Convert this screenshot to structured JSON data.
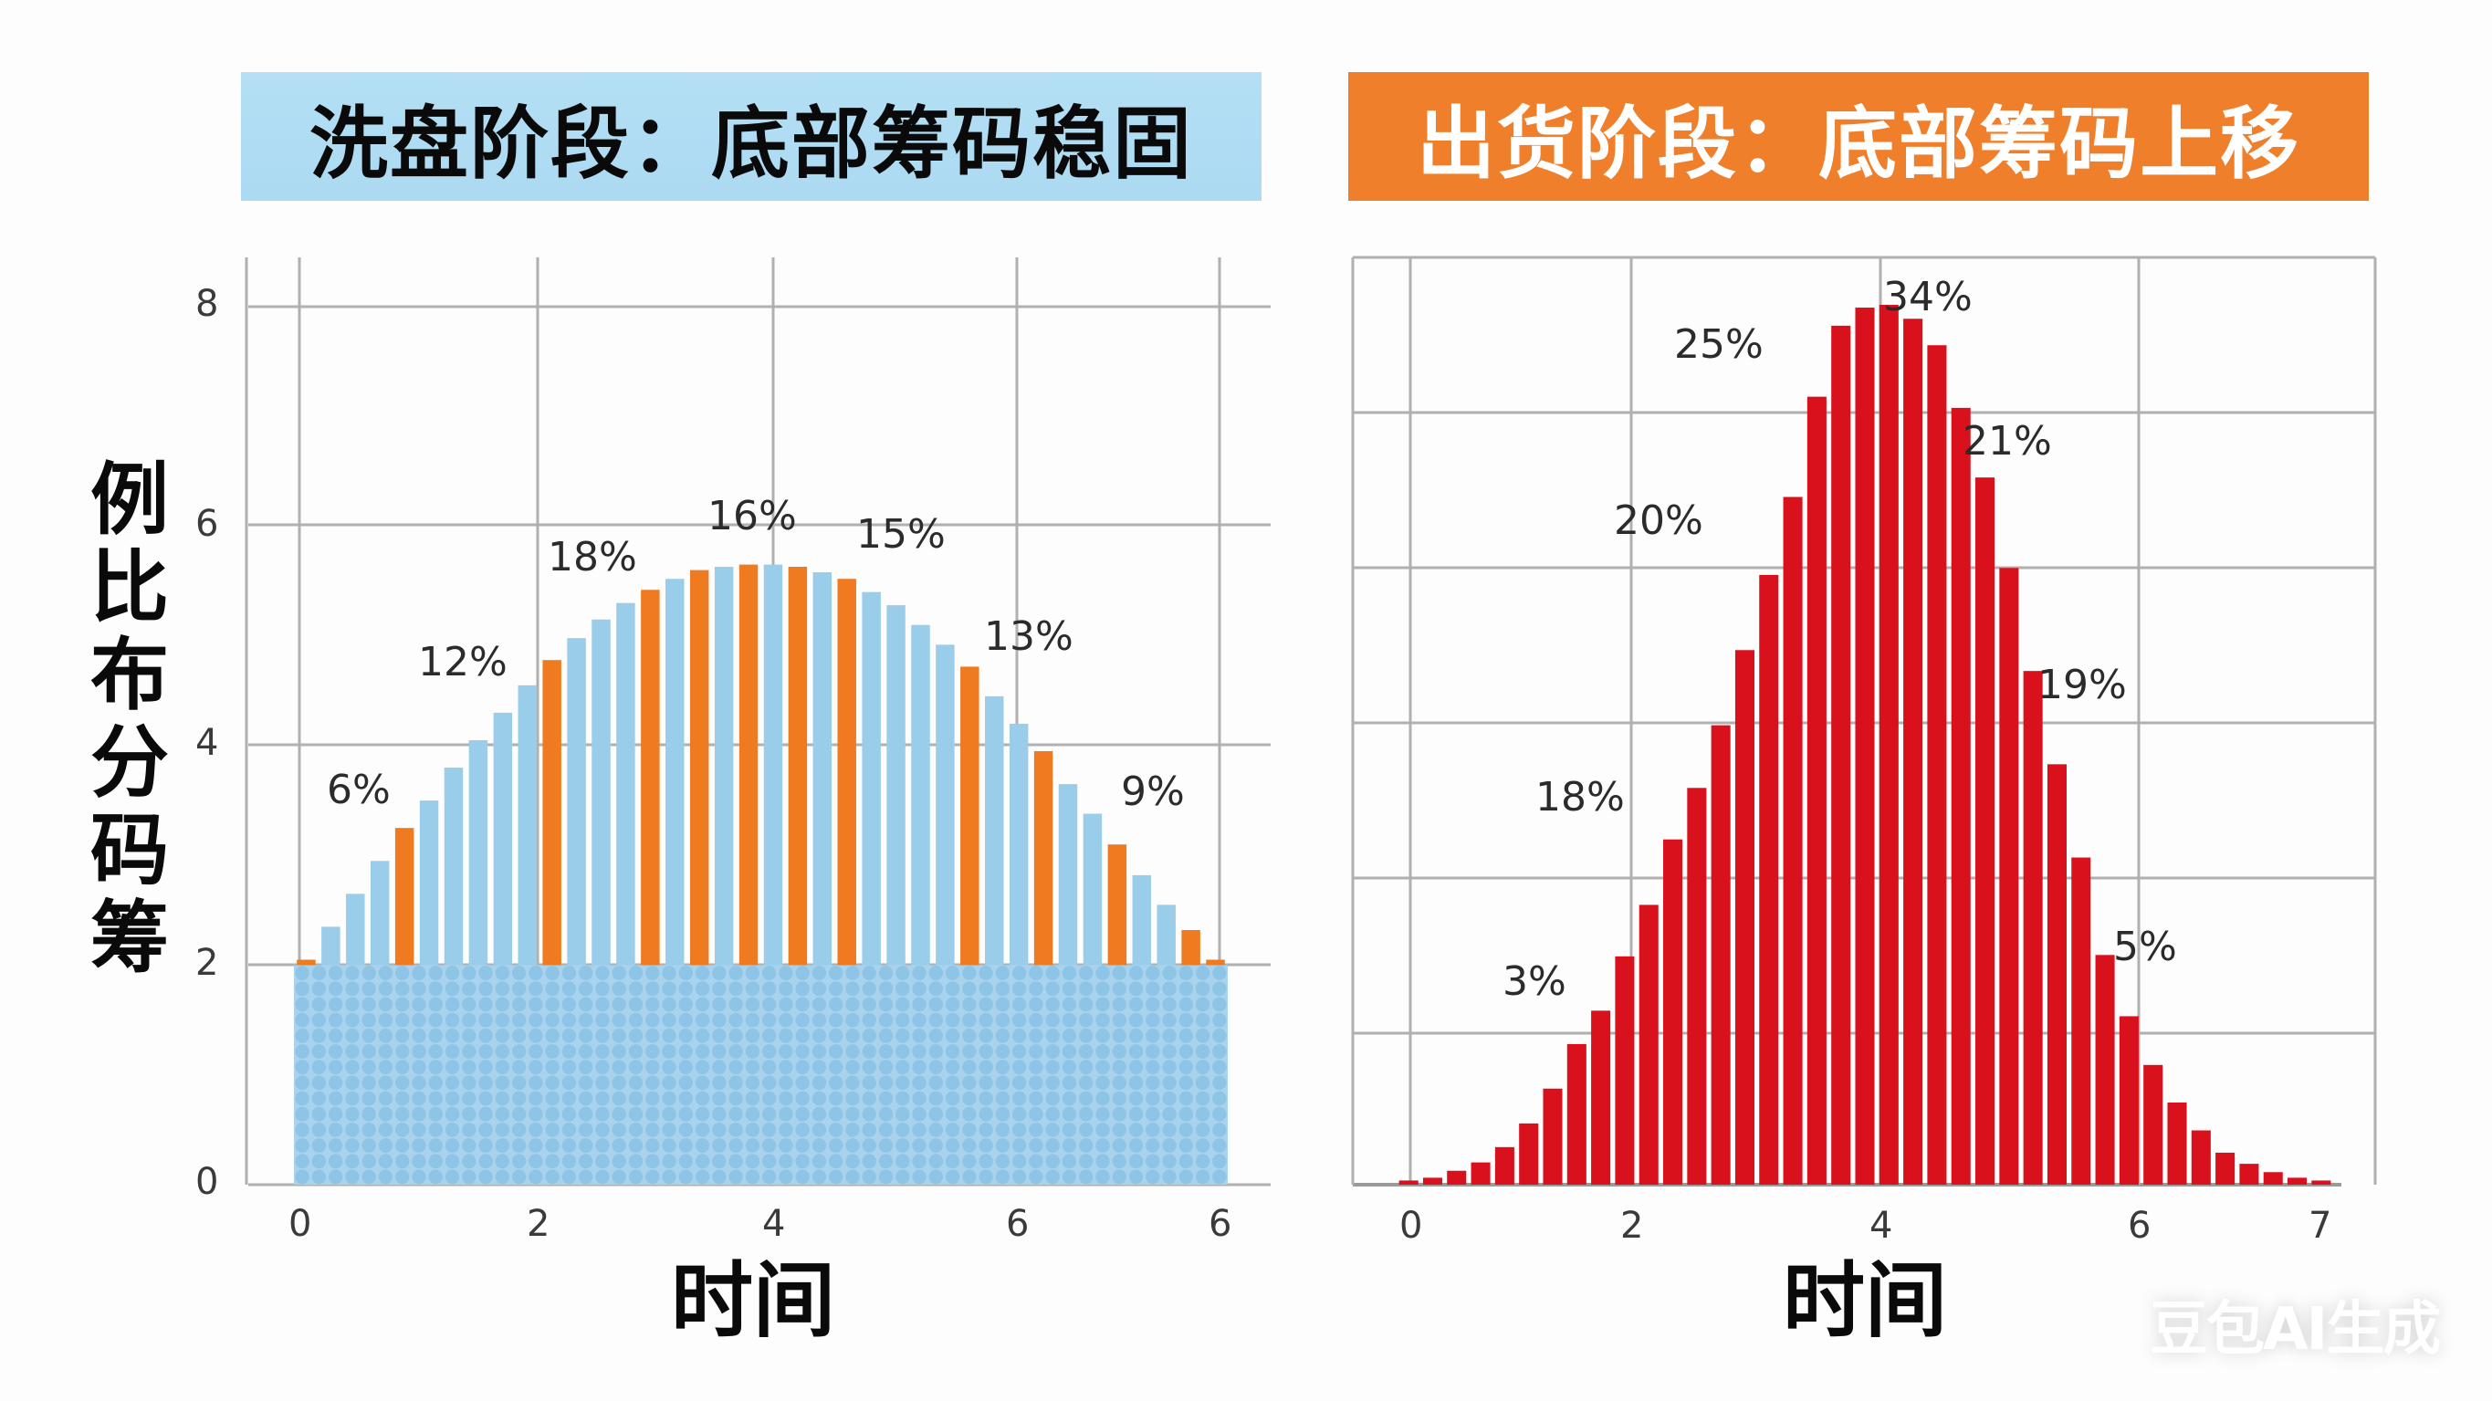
{
  "titles": {
    "left": "洗盘阶段：底部筹码稳固",
    "right": "出货阶段：底部筹码上移"
  },
  "colors": {
    "left_banner": "#b0dcf3",
    "right_banner": "#ef7f2b",
    "blue_bar": "#99cdea",
    "orange_bar": "#ef7a1f",
    "red_bar": "#d9111c",
    "dot_fill": "#8ec4e6",
    "grid": "#b0b0b0"
  },
  "ylabel_left": [
    "例",
    "比",
    "布",
    "分",
    "码",
    "筹"
  ],
  "xlabel_left": "时间",
  "xlabel_right": "时间",
  "watermark": "豆包AI生成",
  "chart_data": [
    {
      "type": "bar",
      "title": "洗盘阶段：底部筹码稳固",
      "xlabel": "时间",
      "ylabel": "筹码分布比例",
      "ylim": [
        0,
        8
      ],
      "yticks": [
        "0",
        "2",
        "4",
        "6",
        "8"
      ],
      "xticks": [
        "0",
        "2",
        "4",
        "6",
        "6"
      ],
      "grid": true,
      "base_block": {
        "from": 0,
        "to": 2,
        "style": "dotted blue fill"
      },
      "bars": {
        "values": [
          2.05,
          2.35,
          2.65,
          2.95,
          3.25,
          3.5,
          3.8,
          4.05,
          4.3,
          4.55,
          4.78,
          4.98,
          5.15,
          5.3,
          5.42,
          5.52,
          5.6,
          5.63,
          5.65,
          5.65,
          5.63,
          5.58,
          5.52,
          5.4,
          5.28,
          5.1,
          4.92,
          4.72,
          4.45,
          4.2,
          3.95,
          3.65,
          3.38,
          3.1,
          2.82,
          2.55,
          2.32,
          2.05
        ],
        "colors": [
          "orange",
          "blue",
          "blue",
          "blue",
          "orange",
          "blue",
          "blue",
          "blue",
          "blue",
          "blue",
          "orange",
          "blue",
          "blue",
          "blue",
          "orange",
          "blue",
          "orange",
          "blue",
          "orange",
          "blue",
          "orange",
          "blue",
          "orange",
          "blue",
          "blue",
          "blue",
          "blue",
          "orange",
          "blue",
          "blue",
          "orange",
          "blue",
          "blue",
          "orange",
          "blue",
          "blue",
          "orange",
          "orange"
        ]
      },
      "annotations": [
        {
          "text": "6%",
          "x": 0.6,
          "y": 3.5
        },
        {
          "text": "12%",
          "x": 1.5,
          "y": 4.6
        },
        {
          "text": "18%",
          "x": 2.5,
          "y": 5.7
        },
        {
          "text": "16%",
          "x": 3.85,
          "y": 6.0
        },
        {
          "text": "15%",
          "x": 5.1,
          "y": 5.8
        },
        {
          "text": "13%",
          "x": 6.05,
          "y": 4.9
        },
        {
          "text": "9%",
          "x": 7.1,
          "y": 3.5
        }
      ]
    },
    {
      "type": "bar",
      "title": "出货阶段：底部筹码上移",
      "xlabel": "时间",
      "xticks": [
        "0",
        "2",
        "4",
        "6",
        "7"
      ],
      "grid": true,
      "bars": {
        "values": [
          0.3,
          0.5,
          1.0,
          1.6,
          2.7,
          4.4,
          6.9,
          10.1,
          12.5,
          16.4,
          20.1,
          24.8,
          28.5,
          33.0,
          38.4,
          43.8,
          49.4,
          56.6,
          61.7,
          63.0,
          63.2,
          62.2,
          60.3,
          55.8,
          50.8,
          44.3,
          36.9,
          30.2,
          23.5,
          16.5,
          12.1,
          8.6,
          5.9,
          3.9,
          2.3,
          1.5,
          0.9,
          0.5,
          0.3
        ],
        "color": "red"
      },
      "annotations": [
        {
          "text": "3%",
          "x": 1.1
        },
        {
          "text": "18%",
          "x": 1.55
        },
        {
          "text": "20%",
          "x": 2.2
        },
        {
          "text": "25%",
          "x": 2.7
        },
        {
          "text": "34%",
          "x": 4.35
        },
        {
          "text": "21%",
          "x": 4.9
        },
        {
          "text": "19%",
          "x": 5.6
        },
        {
          "text": "5%",
          "x": 6.0
        }
      ]
    }
  ]
}
